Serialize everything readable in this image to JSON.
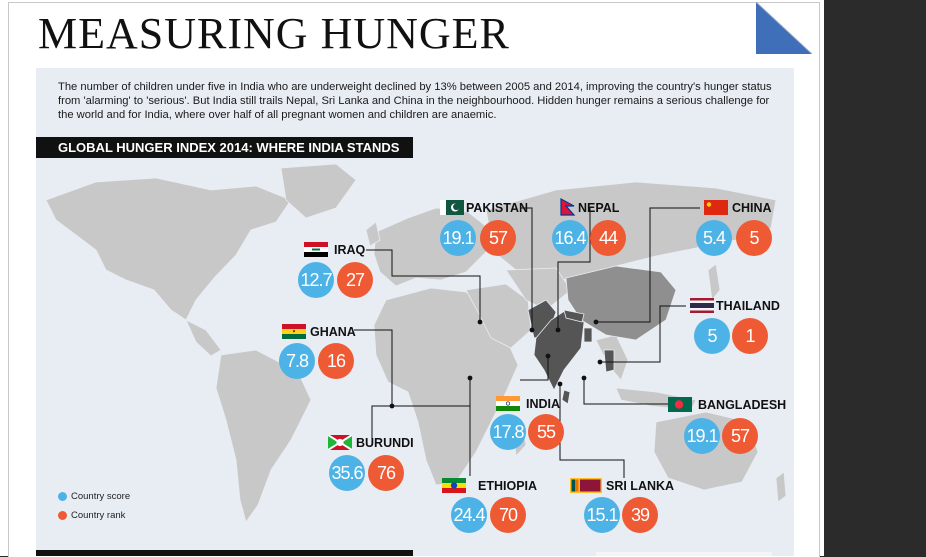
{
  "title": "MEASURING HUNGER",
  "intro": "The number of children under five in India who are underweight declined by 13% between 2005 and 2014, improving the country's hunger status from 'alarming' to 'serious'. But India still trails Nepal, Sri Lanka and China in the neighbourhood. Hidden hunger remains a serious challenge for the world and for India, where over half of all pregnant women and children are anaemic.",
  "subhead": "GLOBAL HUNGER INDEX 2014: WHERE INDIA STANDS",
  "legend": {
    "score": "Country score",
    "rank": "Country rank"
  },
  "colors": {
    "score": "#4db2e6",
    "rank": "#ee5a33",
    "land": "#c8c8c8",
    "highlight": "#555555"
  },
  "chart_data": {
    "type": "table",
    "title": "GLOBAL HUNGER INDEX 2014: WHERE INDIA STANDS",
    "columns": [
      "Country score",
      "Country rank"
    ],
    "rows": [
      {
        "country": "PAKISTAN",
        "score": "19.1",
        "rank": "57"
      },
      {
        "country": "NEPAL",
        "score": "16.4",
        "rank": "44"
      },
      {
        "country": "CHINA",
        "score": "5.4",
        "rank": "5"
      },
      {
        "country": "IRAQ",
        "score": "12.7",
        "rank": "27"
      },
      {
        "country": "THAILAND",
        "score": "5",
        "rank": "1"
      },
      {
        "country": "GHANA",
        "score": "7.8",
        "rank": "16"
      },
      {
        "country": "INDIA",
        "score": "17.8",
        "rank": "55"
      },
      {
        "country": "BANGLADESH",
        "score": "19.1",
        "rank": "57"
      },
      {
        "country": "BURUNDI",
        "score": "35.6",
        "rank": "76"
      },
      {
        "country": "ETHIOPIA",
        "score": "24.4",
        "rank": "70"
      },
      {
        "country": "SRI LANKA",
        "score": "15.1",
        "rank": "39"
      }
    ]
  }
}
